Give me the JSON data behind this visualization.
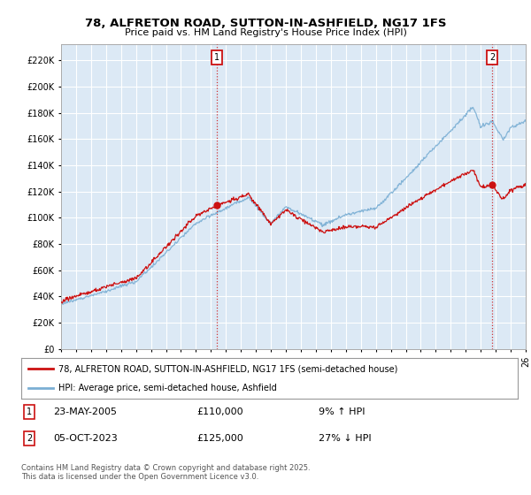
{
  "title": "78, ALFRETON ROAD, SUTTON-IN-ASHFIELD, NG17 1FS",
  "subtitle": "Price paid vs. HM Land Registry's House Price Index (HPI)",
  "ylabel_ticks": [
    "£0",
    "£20K",
    "£40K",
    "£60K",
    "£80K",
    "£100K",
    "£120K",
    "£140K",
    "£160K",
    "£180K",
    "£200K",
    "£220K"
  ],
  "ytick_vals": [
    0,
    20000,
    40000,
    60000,
    80000,
    100000,
    120000,
    140000,
    160000,
    180000,
    200000,
    220000
  ],
  "ylim": [
    0,
    232000
  ],
  "xlim_start": 1995.0,
  "xlim_end": 2026.0,
  "hpi_color": "#7bafd4",
  "price_color": "#cc1111",
  "marker1_year": 2005.38,
  "marker2_year": 2023.77,
  "marker1_price": 110000,
  "marker2_price": 125000,
  "legend_line1": "78, ALFRETON ROAD, SUTTON-IN-ASHFIELD, NG17 1FS (semi-detached house)",
  "legend_line2": "HPI: Average price, semi-detached house, Ashfield",
  "table_row1": [
    "1",
    "23-MAY-2005",
    "£110,000",
    "9% ↑ HPI"
  ],
  "table_row2": [
    "2",
    "05-OCT-2023",
    "£125,000",
    "27% ↓ HPI"
  ],
  "footer": "Contains HM Land Registry data © Crown copyright and database right 2025.\nThis data is licensed under the Open Government Licence v3.0.",
  "background_color": "#ffffff",
  "plot_bg_color": "#dce9f5",
  "grid_color": "#ffffff"
}
